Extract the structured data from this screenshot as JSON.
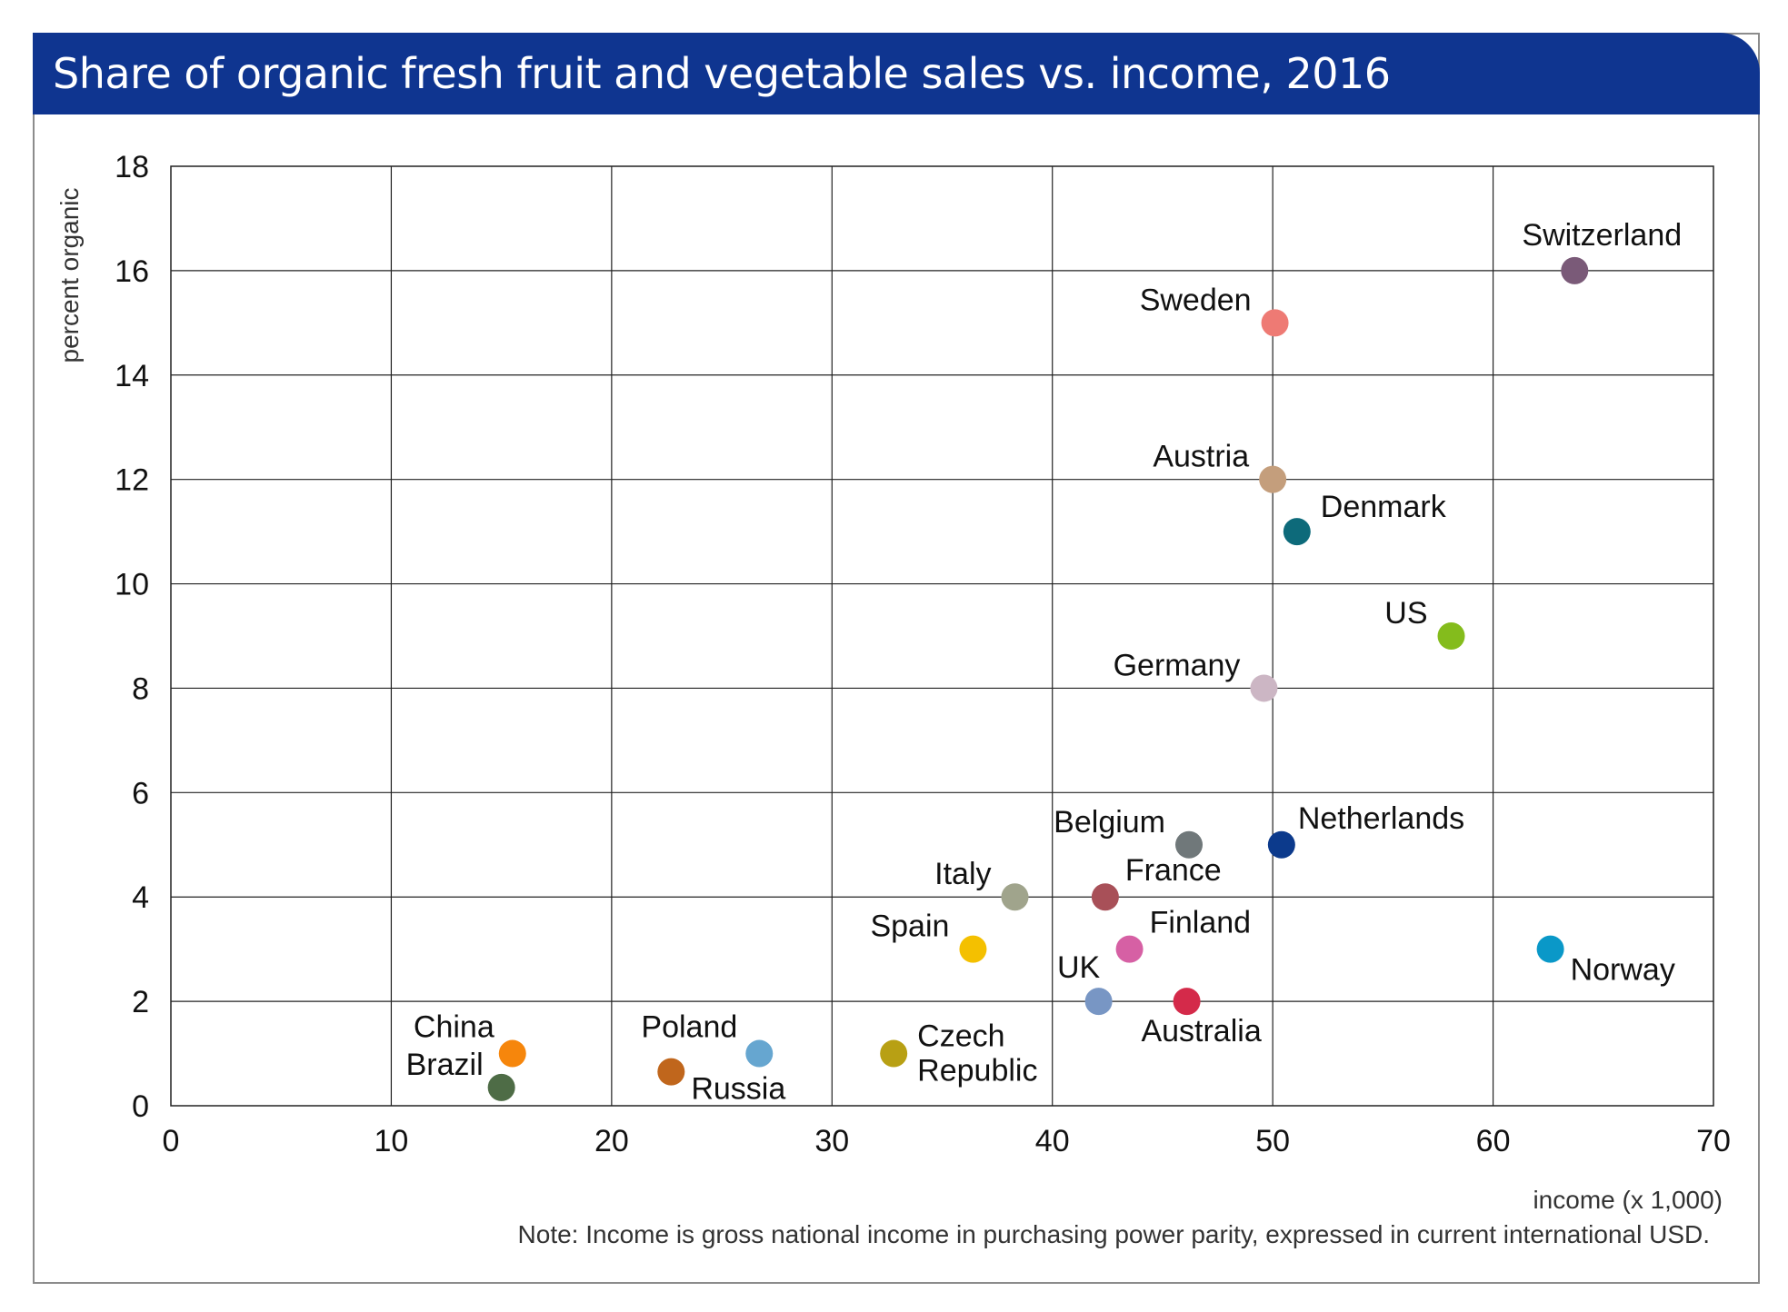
{
  "title": "Share of organic fresh fruit and vegetable sales vs. income, 2016",
  "note": "Note: Income is gross national income in purchasing power parity, expressed in current international USD.",
  "chart_data": {
    "type": "scatter",
    "title": "Share of organic fresh fruit and vegetable sales vs. income, 2016",
    "xlabel": "income (x 1,000)",
    "ylabel": "percent organic",
    "xlim": [
      0,
      70
    ],
    "ylim": [
      0,
      18
    ],
    "xticks": [
      0,
      10,
      20,
      30,
      40,
      50,
      60,
      70
    ],
    "yticks": [
      0,
      2,
      4,
      6,
      8,
      10,
      12,
      14,
      16,
      18
    ],
    "grid": true,
    "points": [
      {
        "label": "Switzerland",
        "x": 63.7,
        "y": 16.0,
        "color": "#7a5a78",
        "anchor": "above-left"
      },
      {
        "label": "Sweden",
        "x": 50.1,
        "y": 15.0,
        "color": "#ee7a74",
        "anchor": "left"
      },
      {
        "label": "Austria",
        "x": 50.0,
        "y": 12.0,
        "color": "#c49e7c",
        "anchor": "left"
      },
      {
        "label": "Denmark",
        "x": 51.1,
        "y": 11.0,
        "color": "#0d6a7a",
        "anchor": "above-right"
      },
      {
        "label": "US",
        "x": 58.1,
        "y": 9.0,
        "color": "#84bc1c",
        "anchor": "left"
      },
      {
        "label": "Germany",
        "x": 49.6,
        "y": 8.0,
        "color": "#ccb6c4",
        "anchor": "left"
      },
      {
        "label": "Netherlands",
        "x": 50.4,
        "y": 5.0,
        "color": "#0c3a8c",
        "anchor": "above-right"
      },
      {
        "label": "Belgium",
        "x": 46.2,
        "y": 5.0,
        "color": "#70787a",
        "anchor": "left"
      },
      {
        "label": "Italy",
        "x": 38.3,
        "y": 4.0,
        "color": "#a0a48c",
        "anchor": "left"
      },
      {
        "label": "France",
        "x": 42.4,
        "y": 4.0,
        "color": "#a85058",
        "anchor": "right-up"
      },
      {
        "label": "Spain",
        "x": 36.4,
        "y": 3.0,
        "color": "#f4c000",
        "anchor": "left"
      },
      {
        "label": "Finland",
        "x": 43.5,
        "y": 3.0,
        "color": "#d660a4",
        "anchor": "right-up"
      },
      {
        "label": "Norway",
        "x": 62.6,
        "y": 3.0,
        "color": "#0a98c8",
        "anchor": "below-right"
      },
      {
        "label": "UK",
        "x": 42.1,
        "y": 2.0,
        "color": "#7896c4",
        "anchor": "above-left"
      },
      {
        "label": "Australia",
        "x": 46.1,
        "y": 2.0,
        "color": "#d42a4a",
        "anchor": "below"
      },
      {
        "label": "China",
        "x": 15.5,
        "y": 1.0,
        "color": "#f6860c",
        "anchor": "left-up"
      },
      {
        "label": "Brazil",
        "x": 15.0,
        "y": 0.35,
        "color": "#4e6c46",
        "anchor": "left"
      },
      {
        "label": "Poland",
        "x": 26.7,
        "y": 1.0,
        "color": "#66a6d0",
        "anchor": "left-up"
      },
      {
        "label": "Russia",
        "x": 22.7,
        "y": 0.65,
        "color": "#c0661c",
        "anchor": "below-right"
      },
      {
        "label": "Czech\nRepublic",
        "x": 32.8,
        "y": 1.0,
        "color": "#b8a014",
        "anchor": "right"
      }
    ]
  }
}
